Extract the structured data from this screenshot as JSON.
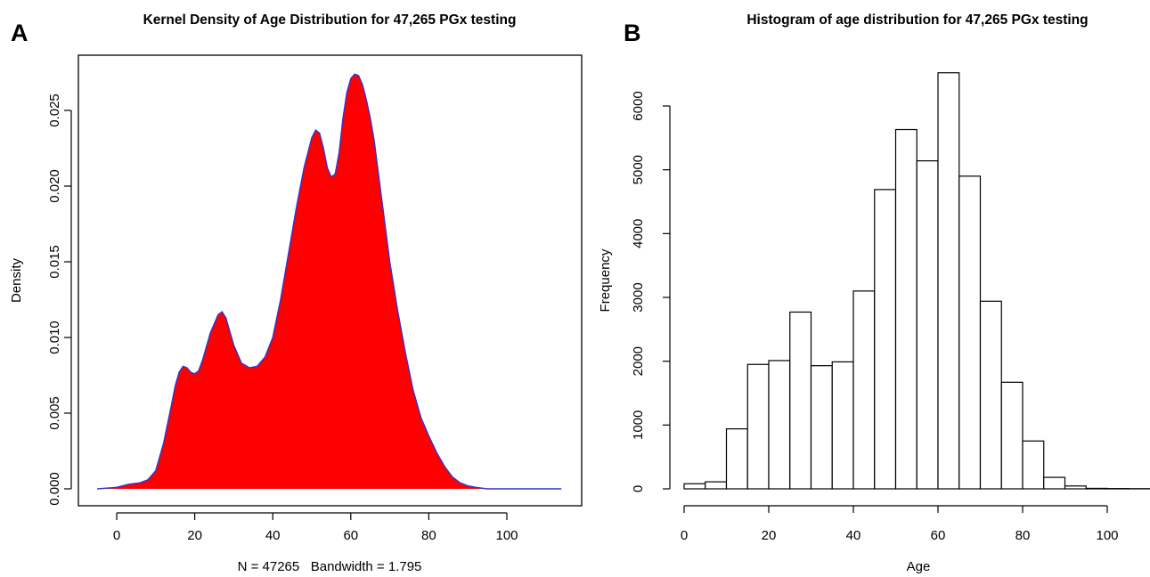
{
  "panels": {
    "a": {
      "letter": "A"
    },
    "b": {
      "letter": "B"
    }
  },
  "chart_data": [
    {
      "type": "area",
      "title": "Kernel Density of Age Distribution for 47,265 PGx testing",
      "xlabel": "N = 47265   Bandwidth = 1.795",
      "ylabel": "Density",
      "xlim": [
        -5,
        114
      ],
      "ylim": [
        0,
        0.0275
      ],
      "xticks": [
        0,
        20,
        40,
        60,
        80,
        100
      ],
      "yticks": [
        0.0,
        0.005,
        0.01,
        0.015,
        0.02,
        0.025
      ],
      "ytick_labels": [
        "0.000",
        "0.005",
        "0.010",
        "0.015",
        "0.020",
        "0.025"
      ],
      "fill_color": "#ff0000",
      "line_color": "#3333cc",
      "grid": false,
      "box": true,
      "series": [
        {
          "x": [
            -5,
            0,
            3,
            6,
            8,
            10,
            12,
            14,
            15,
            16,
            17,
            18,
            19,
            20,
            21,
            22,
            24,
            26,
            27,
            28,
            30,
            32,
            34,
            36,
            38,
            40,
            42,
            44,
            46,
            48,
            50,
            51,
            52,
            53,
            54,
            55,
            56,
            57,
            58,
            59,
            60,
            61,
            62,
            63,
            64,
            65,
            66,
            68,
            70,
            72,
            74,
            76,
            78,
            80,
            82,
            84,
            86,
            88,
            90,
            92,
            95,
            100,
            105,
            114
          ],
          "y": [
            0,
            0.0001,
            0.0003,
            0.0004,
            0.0006,
            0.0012,
            0.003,
            0.0055,
            0.0068,
            0.0077,
            0.0081,
            0.008,
            0.0077,
            0.0076,
            0.0078,
            0.0085,
            0.0103,
            0.0115,
            0.0117,
            0.0113,
            0.0095,
            0.0083,
            0.008,
            0.0081,
            0.0087,
            0.01,
            0.0125,
            0.0155,
            0.0185,
            0.0212,
            0.0232,
            0.0237,
            0.0235,
            0.0225,
            0.0212,
            0.0206,
            0.0208,
            0.0222,
            0.0245,
            0.0262,
            0.0271,
            0.0274,
            0.0273,
            0.0267,
            0.0257,
            0.0245,
            0.023,
            0.019,
            0.015,
            0.0118,
            0.009,
            0.0065,
            0.0047,
            0.0035,
            0.0024,
            0.0015,
            0.0008,
            0.0004,
            0.0002,
            0.0001,
            0,
            0,
            0,
            0
          ]
        }
      ]
    },
    {
      "type": "bar",
      "title": "Histogram of age distribution for 47,265 PGx testing",
      "xlabel": "Age",
      "ylabel": "Frequency",
      "xlim": [
        0,
        110
      ],
      "ylim": [
        0,
        6500
      ],
      "xticks": [
        0,
        20,
        40,
        60,
        80,
        100
      ],
      "yticks": [
        0,
        1000,
        2000,
        3000,
        4000,
        5000,
        6000
      ],
      "grid": false,
      "box": false,
      "bin_edges": [
        0,
        5,
        10,
        15,
        20,
        25,
        30,
        35,
        40,
        45,
        50,
        55,
        60,
        65,
        70,
        75,
        80,
        85,
        90,
        95,
        100,
        105,
        110
      ],
      "values": [
        80,
        110,
        940,
        1950,
        2010,
        2770,
        1930,
        1990,
        3100,
        4690,
        5630,
        5140,
        6520,
        4900,
        2940,
        1670,
        750,
        180,
        45,
        8,
        5,
        3
      ]
    }
  ]
}
